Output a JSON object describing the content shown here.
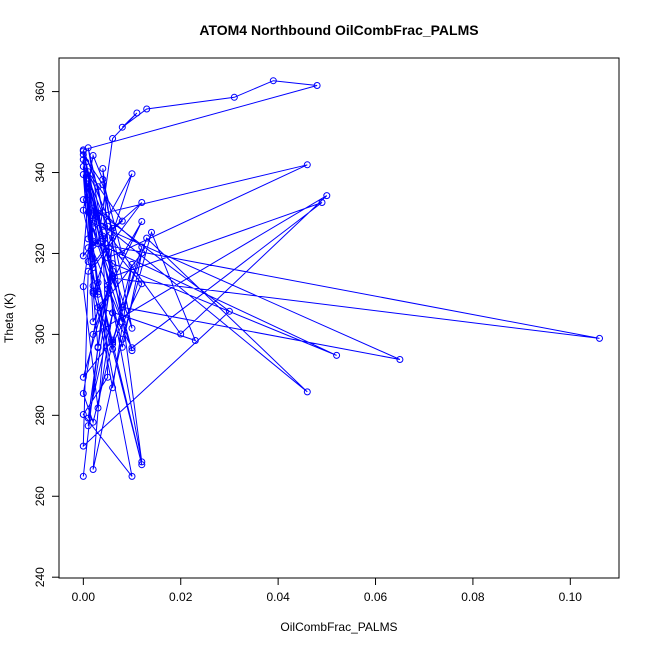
{
  "chart_data": {
    "type": "line",
    "title": "ATOM4 Northbound OilCombFrac_PALMS",
    "xlabel": "OilCombFrac_PALMS",
    "ylabel": "Theta (K)",
    "xlim": [
      -0.005,
      0.11
    ],
    "ylim": [
      239.8,
      368.3
    ],
    "xticks": [
      0.0,
      0.02,
      0.04,
      0.06,
      0.08,
      0.1
    ],
    "xtick_labels": [
      "0.00",
      "0.02",
      "0.04",
      "0.06",
      "0.08",
      "0.10"
    ],
    "yticks": [
      240,
      260,
      280,
      300,
      320,
      340,
      360
    ],
    "ytick_labels": [
      "240",
      "260",
      "280",
      "300",
      "320",
      "340",
      "360"
    ],
    "grid": false,
    "legend": "none",
    "series": [
      {
        "color": "#0000ff",
        "marker": "open-circle",
        "x": [
          0.0,
          0.004,
          0.012,
          0.008,
          0.002,
          0.03,
          0.0,
          0.001,
          0.006,
          0.002,
          0.008,
          0.014,
          0.023,
          0.003,
          0.0,
          0.002,
          0.01,
          0.006,
          0.002,
          0.001,
          0.01,
          0.0,
          0.005,
          0.004,
          0.0005,
          0.002,
          0.012,
          0.008,
          0.004,
          0.002,
          0.0,
          0.006,
          0.012,
          0.003,
          0.0,
          0.001,
          0.008,
          0.003,
          0.0,
          0.048,
          0.039,
          0.031,
          0.013,
          0.008,
          0.011,
          0.006,
          0.003,
          0.001,
          0.006,
          0.002,
          0.05,
          0.02,
          0.004,
          0.01,
          0.002,
          0.006,
          0.012,
          0.004,
          0.001,
          0.004,
          0.012,
          0.006,
          0.002,
          0.0,
          0.002,
          0.008,
          0.001,
          0.006,
          0.012,
          0.002,
          0.0,
          0.005,
          0.003,
          0.001,
          0.0,
          0.002,
          0.106,
          0.006,
          0.001,
          0.002,
          0.065,
          0.008,
          0.002,
          0.001,
          0.003,
          0.0,
          0.004,
          0.01,
          0.004,
          0.006,
          0.052,
          0.002,
          0.001,
          0.0,
          0.01,
          0.005,
          0.046,
          0.002,
          0.0,
          0.003,
          0.006,
          0.01,
          0.049,
          0.006,
          0.003,
          0.0,
          0.012,
          0.004,
          0.006,
          0.001,
          0.003,
          0.005,
          0.0,
          0.006,
          0.013,
          0.046,
          0.001,
          0.002,
          0.003,
          0.005,
          0.006,
          0.001
        ],
        "y": [
          264.9,
          307.3,
          320.1,
          296.8,
          331.2,
          305.7,
          272.4,
          315.6,
          323.9,
          266.6,
          298.8,
          325.2,
          298.5,
          306.7,
          285.4,
          278.3,
          317.3,
          286.8,
          312.0,
          321.4,
          264.9,
          280.2,
          289.4,
          323.7,
          342.6,
          303.1,
          327.9,
          319.6,
          338.3,
          344.2,
          330.7,
          296.4,
          267.8,
          312.8,
          339.5,
          323.6,
          303.0,
          336.5,
          345.6,
          361.5,
          362.7,
          358.6,
          355.7,
          351.2,
          354.7,
          348.4,
          322.4,
          337.9,
          314.5,
          300.0,
          334.3,
          300.1,
          326.7,
          339.7,
          310.2,
          297.6,
          312.5,
          324.3,
          346.1,
          330.1,
          321.6,
          298.1,
          318.7,
          343.2,
          322.0,
          328.0,
          340.2,
          326.2,
          332.6,
          316.5,
          341.5,
          326.7,
          310.5,
          333.1,
          319.4,
          322.6,
          299.0,
          313.9,
          337.2,
          327.5,
          293.8,
          306.7,
          326.4,
          318.0,
          309.9,
          344.4,
          337.0,
          301.5,
          323.1,
          317.5,
          294.8,
          323.0,
          336.0,
          333.3,
          296.0,
          318.9,
          341.9,
          329.3,
          311.8,
          281.8,
          305.3,
          296.7,
          332.6,
          314.3,
          330.0,
          345.3,
          268.5,
          341.0,
          305.3,
          279.3,
          296.9,
          311.2,
          289.4,
          298.6,
          323.8,
          285.8,
          330.2,
          310.7,
          296.7,
          312.1,
          315.7,
          277.4
        ]
      }
    ]
  }
}
